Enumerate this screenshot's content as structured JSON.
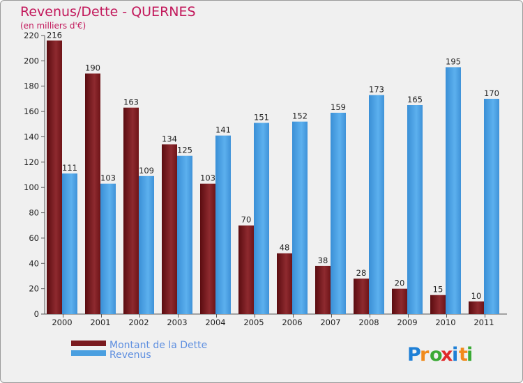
{
  "chart_data": {
    "type": "bar",
    "title": "Revenus/Dette - QUERNES",
    "subtitle": "(en milliers d'€)",
    "categories": [
      "2000",
      "2001",
      "2002",
      "2003",
      "2004",
      "2005",
      "2006",
      "2007",
      "2008",
      "2009",
      "2010",
      "2011"
    ],
    "series": [
      {
        "name": "Montant de la Dette",
        "color": "#7a1a1f",
        "values": [
          216,
          190,
          163,
          134,
          103,
          70,
          48,
          38,
          28,
          20,
          15,
          10
        ]
      },
      {
        "name": "Revenus",
        "color": "#4a9fe0",
        "values": [
          111,
          103,
          109,
          125,
          141,
          151,
          152,
          159,
          173,
          165,
          195,
          170
        ]
      }
    ],
    "ylim": [
      0,
      220
    ],
    "yticks": [
      0,
      20,
      40,
      60,
      80,
      100,
      120,
      140,
      160,
      180,
      200,
      220
    ],
    "grid": false,
    "legend": "bottom-left"
  },
  "logo": {
    "text": "Proxiti",
    "letters": [
      {
        "ch": "P",
        "color": "#1e7fd6"
      },
      {
        "ch": "r",
        "color": "#f08a1c"
      },
      {
        "ch": "o",
        "color": "#3aaa35"
      },
      {
        "ch": "x",
        "color": "#e02b2b"
      },
      {
        "ch": "i",
        "color": "#1e7fd6"
      },
      {
        "ch": "t",
        "color": "#f08a1c"
      },
      {
        "ch": "i",
        "color": "#3aaa35"
      }
    ]
  }
}
